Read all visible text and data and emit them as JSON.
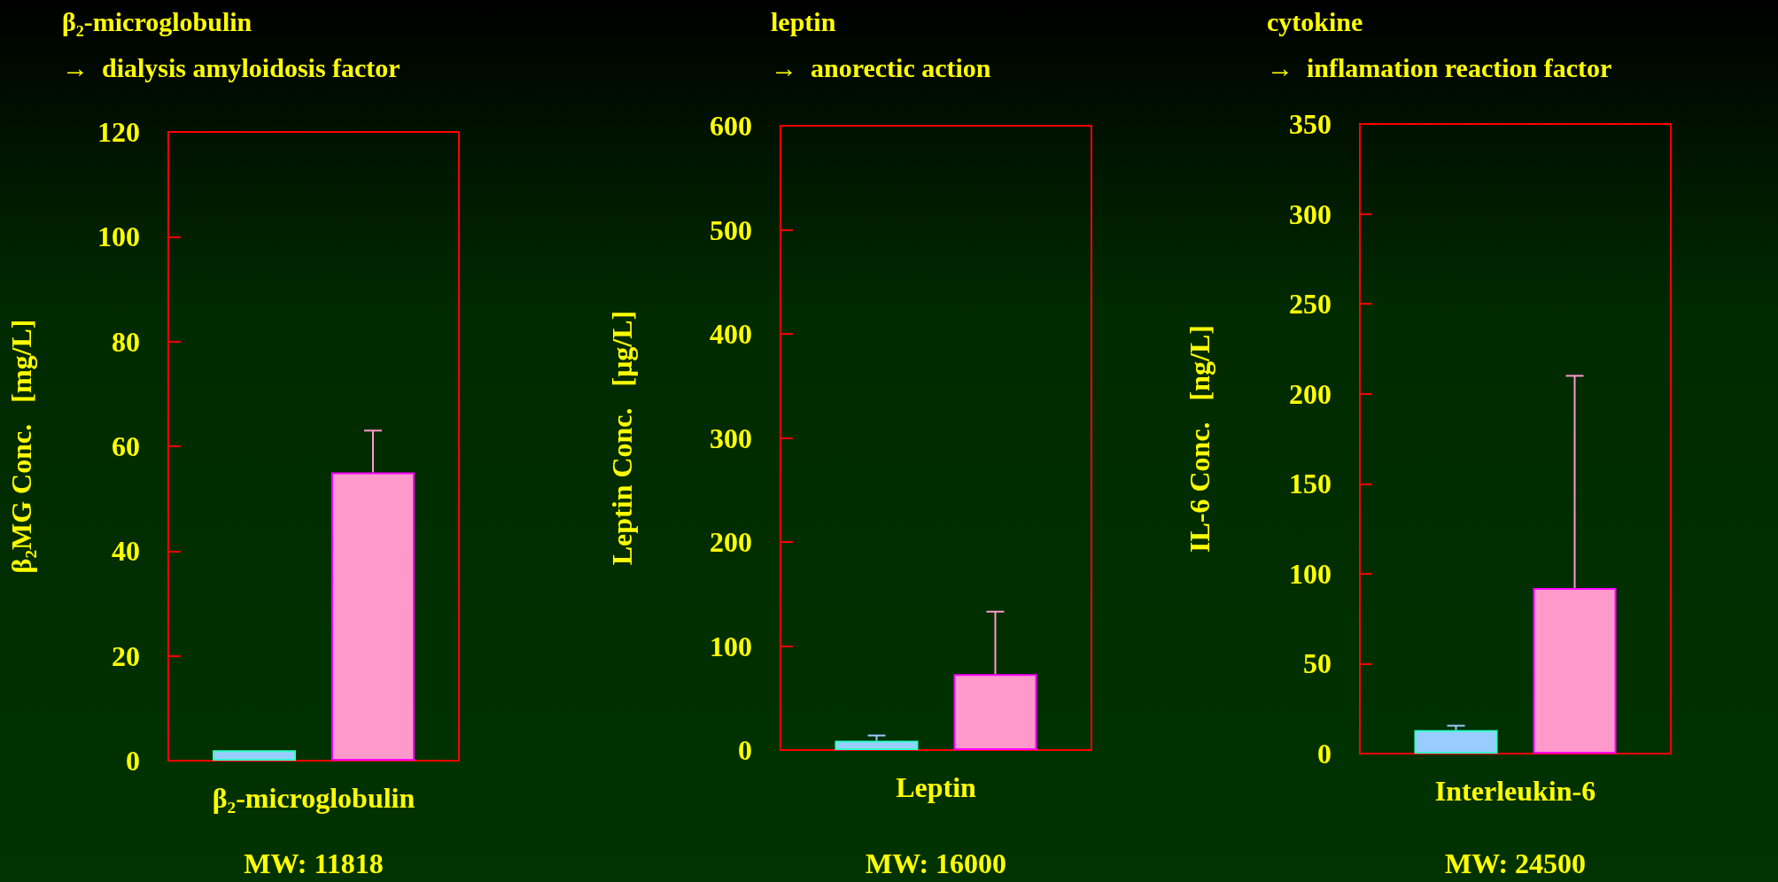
{
  "chart_data": [
    {
      "type": "bar",
      "title": "β₂-microglobulin",
      "subtitle": "→  dialysis amyloidosis factor",
      "ylabel": "β₂MG Conc.   [mg/L]",
      "xlabel": "MW: 11818",
      "categories": [
        "β₂-microglobulin"
      ],
      "series": [
        {
          "color": "#99ccff",
          "values": [
            2
          ],
          "errors": [
            null
          ]
        },
        {
          "color": "#ff99cc",
          "values": [
            55
          ],
          "errors": [
            [
              55,
              63
            ]
          ]
        }
      ],
      "ylim": [
        0,
        120
      ],
      "yticks": [
        0,
        20,
        40,
        60,
        80,
        100,
        120
      ],
      "grid": false,
      "legend": false
    },
    {
      "type": "bar",
      "title": "leptin",
      "subtitle": "→  anorectic action",
      "ylabel": "Leptin Conc.   [μg/L]",
      "xlabel": "MW: 16000",
      "categories": [
        "Leptin"
      ],
      "series": [
        {
          "color": "#99ccff",
          "values": [
            9
          ],
          "errors": [
            [
              9,
              14
            ]
          ]
        },
        {
          "color": "#ff99cc",
          "values": [
            73
          ],
          "errors": [
            [
              73,
              133
            ]
          ]
        }
      ],
      "ylim": [
        0,
        600
      ],
      "yticks": [
        0,
        100,
        200,
        300,
        400,
        500,
        600
      ],
      "grid": false,
      "legend": false
    },
    {
      "type": "bar",
      "title": "cytokine",
      "subtitle": "→  inflamation reaction factor",
      "ylabel": "IL-6 Conc.   [ng/L]",
      "xlabel": "MW: 24500",
      "categories": [
        "Interleukin-6"
      ],
      "series": [
        {
          "color": "#99ccff",
          "values": [
            13
          ],
          "errors": [
            [
              13,
              15.5
            ]
          ]
        },
        {
          "color": "#ff99cc",
          "values": [
            92
          ],
          "errors": [
            [
              92,
              210
            ]
          ]
        }
      ],
      "ylim": [
        0,
        350
      ],
      "yticks": [
        0,
        50,
        100,
        150,
        200,
        250,
        300,
        350
      ],
      "grid": false,
      "legend": false
    }
  ]
}
